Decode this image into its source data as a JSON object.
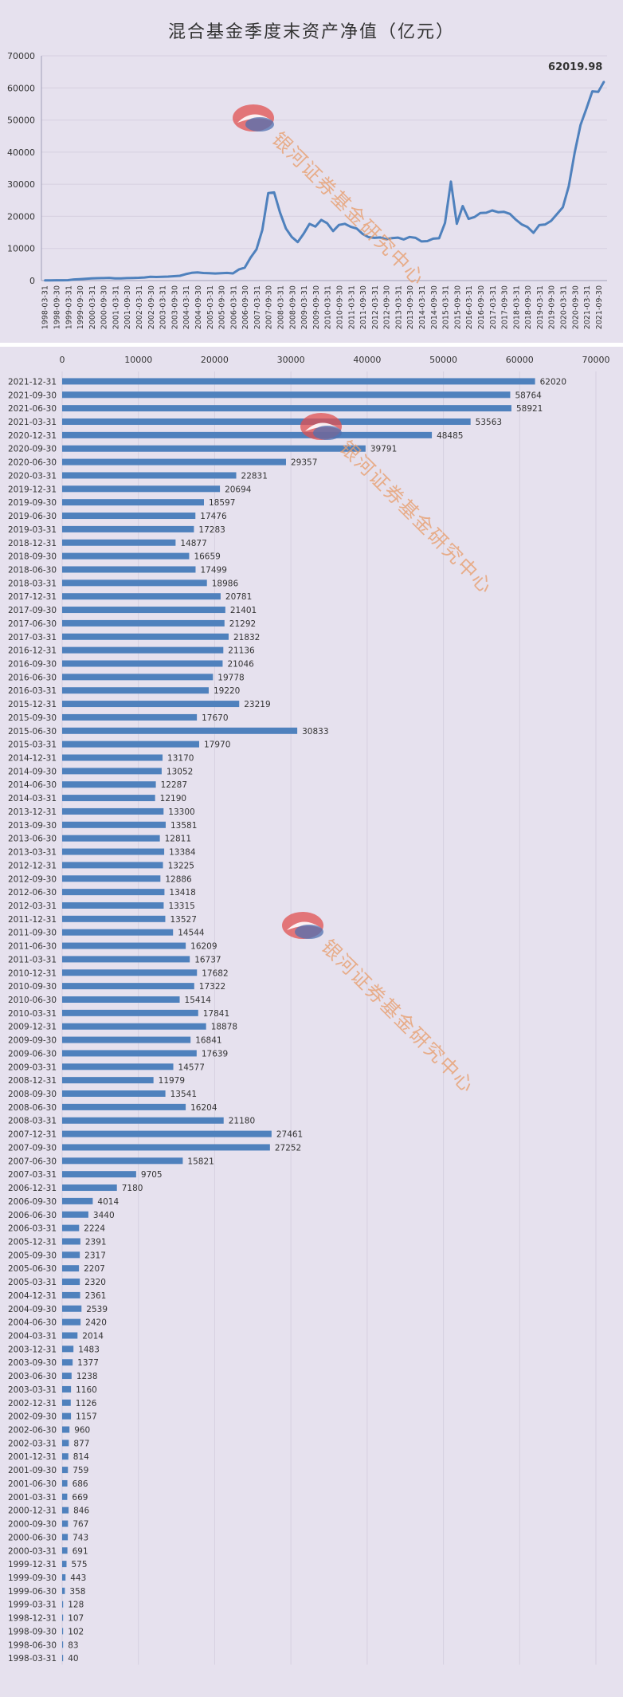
{
  "colors": {
    "background": "#e6e1ee",
    "series": "#4f81bd",
    "grid": "#d6d0e0",
    "text": "#333333",
    "watermark_text": "#e8a070",
    "watermark_red": "#e05050",
    "watermark_blue": "#5070b0"
  },
  "watermark": {
    "text": "银河证券基金研究中心"
  },
  "chart_data": [
    {
      "type": "line",
      "title": "混合基金季度末资产净值（亿元）",
      "series_name": "资产净值",
      "annotation": "62019.98",
      "ylim": [
        0,
        70000
      ],
      "yticks": [
        0,
        10000,
        20000,
        30000,
        40000,
        50000,
        60000,
        70000
      ],
      "grid": true,
      "x": [
        "1998-03-31",
        "1998-06-30",
        "1998-09-30",
        "1998-12-31",
        "1999-03-31",
        "1999-06-30",
        "1999-09-30",
        "1999-12-31",
        "2000-03-31",
        "2000-06-30",
        "2000-09-30",
        "2000-12-31",
        "2001-03-31",
        "2001-06-30",
        "2001-09-30",
        "2001-12-31",
        "2002-03-31",
        "2002-06-30",
        "2002-09-30",
        "2002-12-31",
        "2003-03-31",
        "2003-06-30",
        "2003-09-30",
        "2003-12-31",
        "2004-03-31",
        "2004-06-30",
        "2004-09-30",
        "2004-12-31",
        "2005-03-31",
        "2005-06-30",
        "2005-09-30",
        "2005-12-31",
        "2006-03-31",
        "2006-06-30",
        "2006-09-30",
        "2006-12-31",
        "2007-03-31",
        "2007-06-30",
        "2007-09-30",
        "2007-12-31",
        "2008-03-31",
        "2008-06-30",
        "2008-09-30",
        "2008-12-31",
        "2009-03-31",
        "2009-06-30",
        "2009-09-30",
        "2009-12-31",
        "2010-03-31",
        "2010-06-30",
        "2010-09-30",
        "2010-12-31",
        "2011-03-31",
        "2011-06-30",
        "2011-09-30",
        "2011-12-31",
        "2012-03-31",
        "2012-06-30",
        "2012-09-30",
        "2012-12-31",
        "2013-03-31",
        "2013-06-30",
        "2013-09-30",
        "2013-12-31",
        "2014-03-31",
        "2014-06-30",
        "2014-09-30",
        "2014-12-31",
        "2015-03-31",
        "2015-06-30",
        "2015-09-30",
        "2015-12-31",
        "2016-03-31",
        "2016-06-30",
        "2016-09-30",
        "2016-12-31",
        "2017-03-31",
        "2017-06-30",
        "2017-09-30",
        "2017-12-31",
        "2018-03-31",
        "2018-06-30",
        "2018-09-30",
        "2018-12-31",
        "2019-03-31",
        "2019-06-30",
        "2019-09-30",
        "2019-12-31",
        "2020-03-31",
        "2020-06-30",
        "2020-09-30",
        "2020-12-31",
        "2021-03-31",
        "2021-06-30",
        "2021-09-30",
        "2021-12-31"
      ],
      "x_tick_labels": [
        "1998-03-31",
        "1998-09-30",
        "1999-03-31",
        "1999-09-30",
        "2000-03-31",
        "2000-09-30",
        "2001-03-31",
        "2001-09-30",
        "2002-03-31",
        "2002-09-30",
        "2003-03-31",
        "2003-09-30",
        "2004-03-31",
        "2004-09-30",
        "2005-03-31",
        "2005-09-30",
        "2006-03-31",
        "2006-09-30",
        "2007-03-31",
        "2007-09-30",
        "2008-03-31",
        "2008-09-30",
        "2009-03-31",
        "2009-09-30",
        "2010-03-31",
        "2010-09-30",
        "2011-03-31",
        "2011-09-30",
        "2012-03-31",
        "2012-09-30",
        "2013-03-31",
        "2013-09-30",
        "2014-03-31",
        "2014-09-30",
        "2015-03-31",
        "2015-09-30",
        "2016-03-31",
        "2016-09-30",
        "2017-03-31",
        "2017-09-30",
        "2018-03-31",
        "2018-09-30",
        "2019-03-31",
        "2019-09-30",
        "2020-03-31",
        "2020-09-30",
        "2021-03-31",
        "2021-09-30"
      ],
      "values": [
        40,
        83,
        102,
        107,
        128,
        358,
        443,
        575,
        691,
        743,
        767,
        846,
        669,
        686,
        759,
        814,
        877,
        960,
        1157,
        1126,
        1160,
        1238,
        1377,
        1483,
        2014,
        2420,
        2539,
        2361,
        2320,
        2207,
        2317,
        2391,
        2224,
        3440,
        4014,
        7180,
        9705,
        15821,
        27252,
        27461,
        21180,
        16204,
        13541,
        11979,
        14577,
        17639,
        16841,
        18878,
        17841,
        15414,
        17322,
        17682,
        16737,
        16209,
        14544,
        13527,
        13315,
        13418,
        12886,
        13225,
        13384,
        12811,
        13581,
        13300,
        12190,
        12287,
        13052,
        13170,
        17970,
        30833,
        17670,
        23219,
        19220,
        19778,
        21046,
        21136,
        21832,
        21292,
        21401,
        20781,
        18986,
        17499,
        16659,
        14877,
        17283,
        17476,
        18597,
        20694,
        22831,
        29357,
        39791,
        48485,
        53563,
        58921,
        58764,
        62020
      ]
    },
    {
      "type": "bar",
      "orientation": "horizontal",
      "xlim": [
        0,
        70000
      ],
      "xticks": [
        0,
        10000,
        20000,
        30000,
        40000,
        50000,
        60000,
        70000
      ],
      "grid": true,
      "categories": [
        "2021-12-31",
        "2021-09-30",
        "2021-06-30",
        "2021-03-31",
        "2020-12-31",
        "2020-09-30",
        "2020-06-30",
        "2020-03-31",
        "2019-12-31",
        "2019-09-30",
        "2019-06-30",
        "2019-03-31",
        "2018-12-31",
        "2018-09-30",
        "2018-06-30",
        "2018-03-31",
        "2017-12-31",
        "2017-09-30",
        "2017-06-30",
        "2017-03-31",
        "2016-12-31",
        "2016-09-30",
        "2016-06-30",
        "2016-03-31",
        "2015-12-31",
        "2015-09-30",
        "2015-06-30",
        "2015-03-31",
        "2014-12-31",
        "2014-09-30",
        "2014-06-30",
        "2014-03-31",
        "2013-12-31",
        "2013-09-30",
        "2013-06-30",
        "2013-03-31",
        "2012-12-31",
        "2012-09-30",
        "2012-06-30",
        "2012-03-31",
        "2011-12-31",
        "2011-09-30",
        "2011-06-30",
        "2011-03-31",
        "2010-12-31",
        "2010-09-30",
        "2010-06-30",
        "2010-03-31",
        "2009-12-31",
        "2009-09-30",
        "2009-06-30",
        "2009-03-31",
        "2008-12-31",
        "2008-09-30",
        "2008-06-30",
        "2008-03-31",
        "2007-12-31",
        "2007-09-30",
        "2007-06-30",
        "2007-03-31",
        "2006-12-31",
        "2006-09-30",
        "2006-06-30",
        "2006-03-31",
        "2005-12-31",
        "2005-09-30",
        "2005-06-30",
        "2005-03-31",
        "2004-12-31",
        "2004-09-30",
        "2004-06-30",
        "2004-03-31",
        "2003-12-31",
        "2003-09-30",
        "2003-06-30",
        "2003-03-31",
        "2002-12-31",
        "2002-09-30",
        "2002-06-30",
        "2002-03-31",
        "2001-12-31",
        "2001-09-30",
        "2001-06-30",
        "2001-03-31",
        "2000-12-31",
        "2000-09-30",
        "2000-06-30",
        "2000-03-31",
        "1999-12-31",
        "1999-09-30",
        "1999-06-30",
        "1999-03-31",
        "1998-12-31",
        "1998-09-30",
        "1998-06-30",
        "1998-03-31"
      ],
      "values": [
        62020,
        58764,
        58921,
        53563,
        48485,
        39791,
        29357,
        22831,
        20694,
        18597,
        17476,
        17283,
        14877,
        16659,
        17499,
        18986,
        20781,
        21401,
        21292,
        21832,
        21136,
        21046,
        19778,
        19220,
        23219,
        17670,
        30833,
        17970,
        13170,
        13052,
        12287,
        12190,
        13300,
        13581,
        12811,
        13384,
        13225,
        12886,
        13418,
        13315,
        13527,
        14544,
        16209,
        16737,
        17682,
        17322,
        15414,
        17841,
        18878,
        16841,
        17639,
        14577,
        11979,
        13541,
        16204,
        21180,
        27461,
        27252,
        15821,
        9705,
        7180,
        4014,
        3440,
        2224,
        2391,
        2317,
        2207,
        2320,
        2361,
        2539,
        2420,
        2014,
        1483,
        1377,
        1238,
        1160,
        1126,
        1157,
        960,
        877,
        814,
        759,
        686,
        669,
        846,
        767,
        743,
        691,
        575,
        443,
        358,
        128,
        107,
        102,
        83,
        40
      ]
    }
  ]
}
